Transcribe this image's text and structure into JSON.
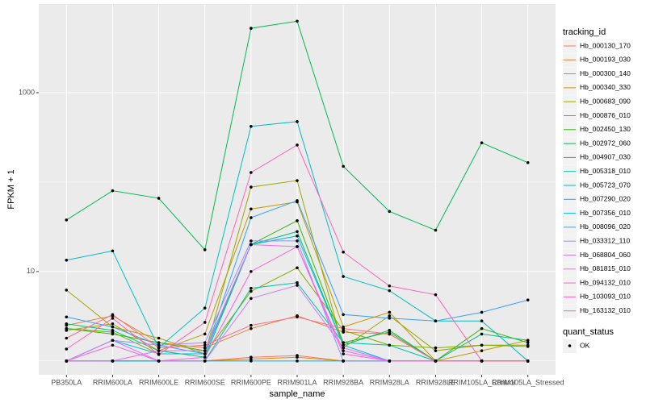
{
  "chart_data": {
    "type": "line",
    "x_label": "sample_name",
    "y_label": "FPKM + 1",
    "log_y": true,
    "grid": true,
    "legend_title": "tracking_id",
    "legend_position": "right",
    "point_color": "#000000",
    "point_legend": {
      "title": "quant_status",
      "labels": [
        "OK"
      ]
    },
    "categories": [
      "PB350LA",
      "RRIM600LA",
      "RRIM600LE",
      "RRIM600SE",
      "RRIM600PE",
      "RRIM901LA",
      "RRIM928BA",
      "RRIM928LA",
      "RRIM928LE",
      "RRIM105LA_Control",
      "RRIM105LA_Stressed"
    ],
    "ylim": [
      0.7,
      9800
    ],
    "yticks": [
      10,
      1000
    ],
    "series": [
      {
        "name": "Hb_000130_170",
        "color": "#F8766D",
        "values": [
          1,
          1,
          1,
          1,
          1.1,
          1.15,
          1,
          1,
          1,
          1,
          1
        ]
      },
      {
        "name": "Hb_000193_030",
        "color": "#EA8331",
        "values": [
          2.5,
          3.2,
          1.6,
          1.4,
          2.3,
          3.2,
          2.1,
          2,
          1,
          1,
          1
        ]
      },
      {
        "name": "Hb_000300_140",
        "color": "#D89000",
        "values": [
          1,
          1,
          1,
          1,
          1.05,
          1.1,
          1,
          1,
          1,
          1,
          1
        ]
      },
      {
        "name": "Hb_000340_330",
        "color": "#C09B00",
        "values": [
          2.2,
          2.6,
          1.3,
          2,
          50,
          60,
          2.4,
          3.5,
          1,
          1.3,
          1.7
        ]
      },
      {
        "name": "Hb_000683_090",
        "color": "#A3A500",
        "values": [
          6.2,
          2.4,
          1.8,
          1.2,
          88,
          104,
          1.4,
          3.2,
          1.3,
          1.5,
          1.45
        ]
      },
      {
        "name": "Hb_000876_010",
        "color": "#7CAE00",
        "values": [
          2.3,
          2.1,
          1.2,
          1.2,
          6,
          11,
          2.2,
          1.5,
          1.4,
          1.5,
          1.5
        ]
      },
      {
        "name": "Hb_002450_130",
        "color": "#39B600",
        "values": [
          2.3,
          2,
          1.6,
          1.3,
          20,
          37,
          1.6,
          2.1,
          1,
          2.3,
          1.6
        ]
      },
      {
        "name": "Hb_002972_060",
        "color": "#00BB4E",
        "values": [
          37.7,
          80,
          66,
          17.5,
          5250,
          6300,
          150,
          47,
          29,
          275,
          165
        ]
      },
      {
        "name": "Hb_004907_030",
        "color": "#00BF7D",
        "values": [
          2.6,
          2.2,
          1.3,
          1.1,
          20,
          28,
          1.5,
          2.2,
          1,
          2,
          1.7
        ]
      },
      {
        "name": "Hb_005318_010",
        "color": "#00C1A3",
        "values": [
          1,
          1,
          1,
          1,
          6.5,
          7.5,
          1.6,
          1.5,
          1,
          1,
          1
        ]
      },
      {
        "name": "Hb_005723_070",
        "color": "#00BFC4",
        "values": [
          13.4,
          17,
          1.4,
          3.9,
          420,
          475,
          8.8,
          6.1,
          2.8,
          2.8,
          1
        ]
      },
      {
        "name": "Hb_007290_020",
        "color": "#00BAE0",
        "values": [
          1,
          1.7,
          1.2,
          1.2,
          20,
          25,
          1.5,
          1,
          1,
          1,
          1
        ]
      },
      {
        "name": "Hb_007356_010",
        "color": "#00B0F6",
        "values": [
          1,
          1,
          1,
          1,
          1,
          1,
          1,
          1,
          1,
          1,
          1
        ]
      },
      {
        "name": "Hb_008096_020",
        "color": "#35A2FF",
        "values": [
          3.1,
          2.4,
          1.5,
          1.2,
          40,
          62,
          3.3,
          3,
          2.8,
          3.5,
          4.8
        ]
      },
      {
        "name": "Hb_033312_110",
        "color": "#9590FF",
        "values": [
          1,
          1.7,
          1.5,
          1.6,
          22,
          22,
          1,
          1,
          1,
          1,
          1
        ]
      },
      {
        "name": "Hb_068804_060",
        "color": "#C77CFF",
        "values": [
          1,
          1.7,
          1,
          1,
          5,
          7,
          1.4,
          1,
          1,
          1,
          1
        ]
      },
      {
        "name": "Hb_081815_010",
        "color": "#E76BF3",
        "values": [
          1,
          1,
          1.3,
          1.3,
          20,
          19,
          1.3,
          1,
          1,
          1,
          1
        ]
      },
      {
        "name": "Hb_094132_010",
        "color": "#FA62DB",
        "values": [
          1,
          1.5,
          1,
          1.1,
          10,
          19,
          1.2,
          1,
          1,
          1,
          1
        ]
      },
      {
        "name": "Hb_103093_010",
        "color": "#FF62BC",
        "values": [
          1.36,
          3,
          1.18,
          2.7,
          128,
          260,
          16.5,
          6.9,
          5.5,
          1,
          1
        ]
      },
      {
        "name": "Hb_163132_010",
        "color": "#FF6C91",
        "values": [
          1.8,
          3.3,
          1.4,
          1.5,
          2.5,
          3.1,
          2.3,
          2,
          1,
          1,
          1
        ]
      }
    ]
  }
}
